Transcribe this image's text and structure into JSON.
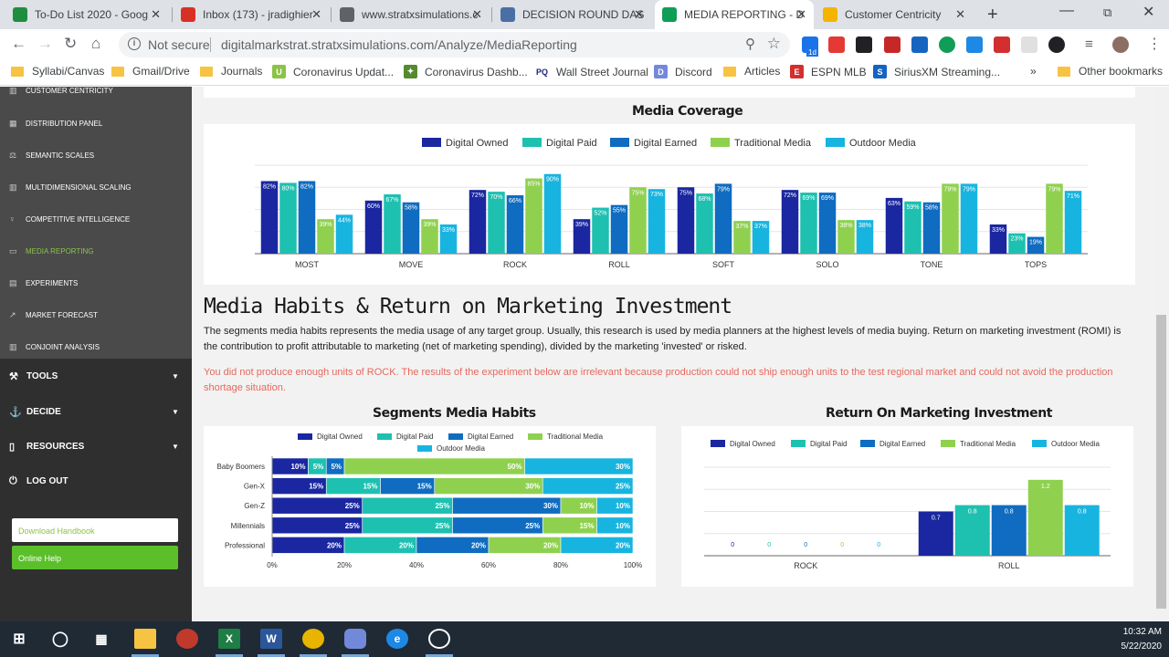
{
  "tabs": [
    {
      "title": "To-Do List 2020 - Goog",
      "icon": "sheets-icon",
      "color": "#1e8e3e"
    },
    {
      "title": "Inbox (173) - jradighier",
      "icon": "gmail-icon",
      "color": "#d93025"
    },
    {
      "title": "www.stratxsimulations.c",
      "icon": "globe-icon",
      "color": "#5f6368"
    },
    {
      "title": "DECISION ROUND DAS",
      "icon": "shield-icon",
      "color": "#4a6fa5"
    },
    {
      "title": "MEDIA REPORTING - D",
      "icon": "markstrat-icon",
      "color": "#0f9d58",
      "active": true
    },
    {
      "title": "Customer Centricity",
      "icon": "emoji-icon",
      "color": "#f4b400"
    }
  ],
  "toolbar": {
    "not_secure": "Not secure",
    "url": "digitalmarkstrat.stratxsimulations.com/Analyze/MediaReporting",
    "ext_badge": "1d"
  },
  "bookmarks": [
    {
      "label": "Syllabi/Canvas",
      "type": "folder"
    },
    {
      "label": "Gmail/Drive",
      "type": "folder"
    },
    {
      "label": "Journals",
      "type": "folder"
    },
    {
      "label": "Coronavirus Updat...",
      "type": "site",
      "color": "#8bc34a",
      "glyph": "U"
    },
    {
      "label": "Coronavirus Dashb...",
      "type": "site",
      "color": "#558b2f",
      "glyph": "✦"
    },
    {
      "label": "Wall Street Journal",
      "type": "site",
      "color": "#ffffff",
      "glyph": "PQ"
    },
    {
      "label": "Discord",
      "type": "site",
      "color": "#7289da",
      "glyph": "D"
    },
    {
      "label": "Articles",
      "type": "folder"
    },
    {
      "label": "ESPN MLB",
      "type": "site",
      "color": "#d32f2f",
      "glyph": "E"
    },
    {
      "label": "SiriusXM Streaming...",
      "type": "site",
      "color": "#1565c0",
      "glyph": "S"
    },
    {
      "label": "»",
      "type": "more"
    },
    {
      "label": "Other bookmarks",
      "type": "folder"
    }
  ],
  "sidebar": {
    "items": [
      {
        "label": "Customer Centricity",
        "icon": "chart-icon"
      },
      {
        "label": "Distribution Panel",
        "icon": "building-icon"
      },
      {
        "label": "Semantic Scales",
        "icon": "scales-icon"
      },
      {
        "label": "Multidimensional Scaling",
        "icon": "chart-icon"
      },
      {
        "label": "Competitive Intelligence",
        "icon": "bulb-icon"
      },
      {
        "label": "Media Reporting",
        "icon": "media-icon",
        "active": true
      },
      {
        "label": "Experiments",
        "icon": "table-icon"
      },
      {
        "label": "Market Forecast",
        "icon": "forecast-icon"
      },
      {
        "label": "Conjoint Analysis",
        "icon": "chart-icon"
      }
    ],
    "sections": [
      {
        "label": "TOOLS",
        "icon": "wrench-icon"
      },
      {
        "label": "DECIDE",
        "icon": "decide-icon"
      },
      {
        "label": "RESOURCES",
        "icon": "book-icon"
      },
      {
        "label": "LOG OUT",
        "icon": "power-icon"
      }
    ],
    "download_handbook": "Download Handbook",
    "online_help": "Online Help"
  },
  "main": {
    "coverage_title": "Media Coverage",
    "habits_heading": "Media Habits & Return on Marketing Investment",
    "description": "The segments media habits represents the media usage of any target group. Usually, this research is used by media planners at the highest levels of media buying. Return on marketing investment (ROMI) is the contribution to profit attributable to marketing (net of marketing spending), divided by the marketing 'invested' or risked.",
    "warning": "You did not produce enough units of ROCK. The results of the experiment below are irrelevant because production could not ship enough units to the test regional market and could not avoid the production shortage situation.",
    "segments_title": "Segments Media Habits",
    "romi_title": "Return On Marketing Investment"
  },
  "colors": {
    "digital_owned": "#1a27a0",
    "digital_paid": "#1ec0b0",
    "digital_earned": "#0f6cc0",
    "traditional_media": "#8fd14f",
    "outdoor_media": "#18b4e0",
    "sidebar_active": "#8bc34a",
    "warning": "#e8685c"
  },
  "taskbar": {
    "time": "10:32 AM",
    "date": "5/22/2020"
  },
  "chart_data": [
    {
      "id": "media-coverage",
      "type": "bar",
      "title": "Media Coverage",
      "categories": [
        "MOST",
        "MOVE",
        "ROCK",
        "ROLL",
        "SOFT",
        "SOLO",
        "TONE",
        "TOPS"
      ],
      "ylim": [
        0,
        100
      ],
      "grid": true,
      "legend": "top",
      "series": [
        {
          "name": "Digital Owned",
          "values": [
            82,
            60,
            72,
            39,
            75,
            72,
            63,
            33
          ]
        },
        {
          "name": "Digital Paid",
          "values": [
            80,
            67,
            70,
            52,
            68,
            69,
            59,
            23
          ]
        },
        {
          "name": "Digital Earned",
          "values": [
            82,
            58,
            66,
            55,
            79,
            69,
            58,
            19
          ]
        },
        {
          "name": "Traditional Media",
          "values": [
            39,
            39,
            85,
            75,
            37,
            38,
            79,
            79
          ]
        },
        {
          "name": "Outdoor Media",
          "values": [
            44,
            33,
            90,
            73,
            37,
            38,
            79,
            71
          ]
        }
      ]
    },
    {
      "id": "segments-media-habits",
      "type": "bar",
      "orientation": "horizontal",
      "stacked": "percent",
      "title": "Segments Media Habits",
      "categories": [
        "Baby Boomers",
        "Gen-X",
        "Gen-Z",
        "Millennials",
        "Professional"
      ],
      "xticks": [
        "0%",
        "20%",
        "40%",
        "60%",
        "80%",
        "100%"
      ],
      "legend": "top",
      "series": [
        {
          "name": "Digital Owned",
          "values": [
            10,
            15,
            25,
            25,
            20
          ]
        },
        {
          "name": "Digital Paid",
          "values": [
            5,
            15,
            25,
            25,
            20
          ]
        },
        {
          "name": "Digital Earned",
          "values": [
            5,
            15,
            30,
            25,
            20
          ]
        },
        {
          "name": "Traditional Media",
          "values": [
            50,
            30,
            10,
            15,
            20
          ]
        },
        {
          "name": "Outdoor Media",
          "values": [
            30,
            25,
            10,
            10,
            20
          ]
        }
      ]
    },
    {
      "id": "romi",
      "type": "bar",
      "title": "Return On Marketing Investment",
      "categories": [
        "ROCK",
        "ROLL"
      ],
      "ylim": [
        0,
        1.4
      ],
      "grid": true,
      "legend": "top",
      "series": [
        {
          "name": "Digital Owned",
          "values": [
            0,
            0.7
          ]
        },
        {
          "name": "Digital Paid",
          "values": [
            0,
            0.8
          ]
        },
        {
          "name": "Digital Earned",
          "values": [
            0,
            0.8
          ]
        },
        {
          "name": "Traditional Media",
          "values": [
            0,
            1.2
          ]
        },
        {
          "name": "Outdoor Media",
          "values": [
            0,
            0.8
          ]
        }
      ]
    }
  ]
}
